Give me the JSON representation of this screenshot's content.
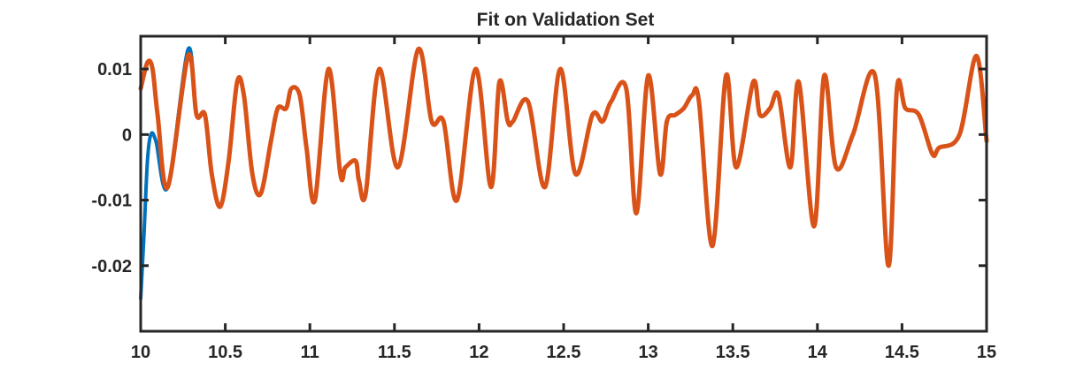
{
  "chart_data": {
    "type": "line",
    "title": "Fit on Validation Set",
    "xlabel": "",
    "ylabel": "",
    "xlim": [
      10,
      15
    ],
    "ylim": [
      -0.03,
      0.015
    ],
    "x_ticks": [
      10,
      10.5,
      11,
      11.5,
      12,
      12.5,
      13,
      13.5,
      14,
      14.5,
      15
    ],
    "x_tick_labels": [
      "10",
      "10.5",
      "11",
      "11.5",
      "12",
      "12.5",
      "13",
      "13.5",
      "14",
      "14.5",
      "15"
    ],
    "y_ticks": [
      -0.02,
      -0.01,
      0,
      0.01
    ],
    "y_tick_labels": [
      "-0.02",
      "-0.01",
      "0",
      "0.01"
    ],
    "grid": false,
    "legend": "none",
    "series": [
      {
        "color": "#0072BD",
        "x": [
          10.0,
          10.02,
          10.04,
          10.06,
          10.09,
          10.16,
          10.28,
          10.33,
          10.38,
          10.42,
          10.47,
          10.52,
          10.57,
          10.61,
          10.66,
          10.71,
          10.77,
          10.81,
          10.86,
          10.89,
          10.94,
          10.98,
          11.03,
          11.11,
          11.18,
          11.21,
          11.27,
          11.29,
          11.33,
          11.41,
          11.52,
          11.64,
          11.72,
          11.79,
          11.87,
          11.98,
          12.07,
          12.12,
          12.17,
          12.2,
          12.29,
          12.39,
          12.48,
          12.57,
          12.67,
          12.73,
          12.78,
          12.87,
          12.93,
          13.0,
          13.07,
          13.11,
          13.16,
          13.21,
          13.26,
          13.3,
          13.38,
          13.46,
          13.52,
          13.62,
          13.66,
          13.72,
          13.77,
          13.84,
          13.89,
          13.98,
          14.04,
          14.11,
          14.21,
          14.34,
          14.42,
          14.47,
          14.52,
          14.6,
          14.68,
          14.72,
          14.84,
          14.94,
          15.0
        ],
        "y": [
          -0.025,
          -0.015,
          -0.004,
          0.0,
          -0.001,
          -0.008,
          0.013,
          0.003,
          0.003,
          -0.006,
          -0.011,
          -0.004,
          0.008,
          0.006,
          -0.006,
          -0.009,
          -0.001,
          0.004,
          0.004,
          0.007,
          0.006,
          -0.002,
          -0.01,
          0.01,
          -0.006,
          -0.005,
          -0.004,
          -0.007,
          -0.009,
          0.01,
          -0.005,
          0.013,
          0.002,
          0.002,
          -0.01,
          0.01,
          -0.008,
          0.008,
          0.002,
          0.002,
          0.005,
          -0.008,
          0.01,
          -0.006,
          0.003,
          0.002,
          0.005,
          0.007,
          -0.012,
          0.009,
          -0.006,
          0.002,
          0.003,
          0.004,
          0.006,
          0.005,
          -0.017,
          0.009,
          -0.005,
          0.008,
          0.003,
          0.004,
          0.006,
          -0.005,
          0.008,
          -0.014,
          0.009,
          -0.005,
          0.0,
          0.009,
          -0.02,
          0.007,
          0.004,
          0.003,
          -0.003,
          -0.002,
          0.0,
          0.012,
          -0.001
        ]
      },
      {
        "color": "#D95319",
        "x": [
          10.0,
          10.04,
          10.07,
          10.1,
          10.16,
          10.28,
          10.33,
          10.38,
          10.42,
          10.47,
          10.52,
          10.57,
          10.61,
          10.66,
          10.71,
          10.77,
          10.81,
          10.86,
          10.89,
          10.94,
          10.98,
          11.03,
          11.11,
          11.18,
          11.21,
          11.27,
          11.29,
          11.33,
          11.41,
          11.52,
          11.64,
          11.72,
          11.79,
          11.87,
          11.98,
          12.07,
          12.12,
          12.17,
          12.2,
          12.29,
          12.39,
          12.48,
          12.57,
          12.67,
          12.73,
          12.78,
          12.87,
          12.93,
          13.0,
          13.07,
          13.11,
          13.16,
          13.21,
          13.26,
          13.3,
          13.38,
          13.46,
          13.52,
          13.62,
          13.66,
          13.72,
          13.77,
          13.84,
          13.89,
          13.98,
          14.04,
          14.11,
          14.21,
          14.34,
          14.42,
          14.47,
          14.52,
          14.6,
          14.68,
          14.72,
          14.84,
          14.94,
          15.0
        ],
        "y": [
          0.007,
          0.011,
          0.01,
          0.003,
          -0.008,
          0.012,
          0.003,
          0.003,
          -0.006,
          -0.011,
          -0.004,
          0.008,
          0.006,
          -0.006,
          -0.009,
          -0.001,
          0.004,
          0.004,
          0.007,
          0.006,
          -0.002,
          -0.01,
          0.01,
          -0.006,
          -0.005,
          -0.004,
          -0.007,
          -0.009,
          0.01,
          -0.005,
          0.013,
          0.002,
          0.002,
          -0.01,
          0.01,
          -0.008,
          0.008,
          0.002,
          0.002,
          0.005,
          -0.008,
          0.01,
          -0.006,
          0.003,
          0.002,
          0.005,
          0.007,
          -0.012,
          0.009,
          -0.006,
          0.002,
          0.003,
          0.004,
          0.006,
          0.005,
          -0.017,
          0.009,
          -0.005,
          0.008,
          0.003,
          0.004,
          0.006,
          -0.005,
          0.008,
          -0.014,
          0.009,
          -0.005,
          0.0,
          0.009,
          -0.02,
          0.007,
          0.004,
          0.003,
          -0.003,
          -0.002,
          0.0,
          0.012,
          -0.001
        ]
      }
    ]
  }
}
